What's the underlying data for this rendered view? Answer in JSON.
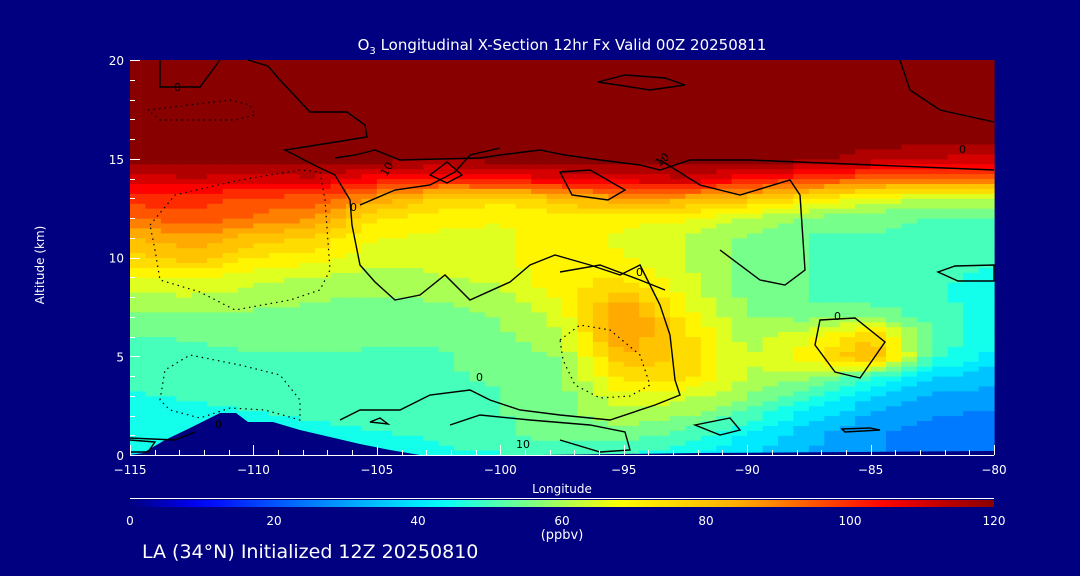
{
  "chart_data": {
    "type": "heatmap",
    "title_prefix": "O",
    "title_sub": "3",
    "title_rest": " Longitudinal X-Section 12hr  Fx Valid 00Z 20250811",
    "xlabel": "Longitude",
    "ylabel": "Altitude (km)",
    "xlim": [
      -115,
      -80
    ],
    "ylim": [
      0,
      20
    ],
    "x_ticks": [
      "−115",
      "−110",
      "−105",
      "−100",
      "−95",
      "−90",
      "−85",
      "−80"
    ],
    "x_tick_values": [
      -115,
      -110,
      -105,
      -100,
      -95,
      -90,
      -85,
      -80
    ],
    "y_ticks": [
      "0",
      "5",
      "10",
      "15",
      "20"
    ],
    "y_tick_values": [
      0,
      5,
      10,
      15,
      20
    ],
    "colorbar": {
      "range": [
        0,
        120
      ],
      "ticks": [
        "0",
        "20",
        "40",
        "60",
        "80",
        "100",
        "120"
      ],
      "units": "(ppbv)"
    },
    "contour_labels": [
      "0",
      "0",
      "10",
      "0",
      "10",
      "0",
      "0",
      "0",
      "0",
      "10"
    ],
    "lon": [
      -115,
      -112.5,
      -110,
      -107.5,
      -105,
      -102.5,
      -100,
      -97.5,
      -95,
      -92.5,
      -90,
      -87.5,
      -85,
      -82.5,
      -80
    ],
    "alt": [
      0,
      1,
      2,
      3,
      4,
      5,
      6,
      7,
      8,
      9,
      10,
      11,
      12,
      13,
      14,
      15,
      16,
      17,
      18,
      19,
      20
    ],
    "values": [
      [
        42,
        42,
        44,
        45,
        45,
        46,
        47,
        48,
        47,
        44,
        38,
        32,
        28,
        26,
        25
      ],
      [
        44,
        45,
        46,
        46,
        47,
        48,
        52,
        55,
        55,
        50,
        42,
        34,
        28,
        25,
        24
      ],
      [
        45,
        46,
        47,
        48,
        49,
        50,
        52,
        56,
        60,
        58,
        50,
        40,
        32,
        28,
        26
      ],
      [
        47,
        48,
        49,
        49,
        50,
        51,
        52,
        56,
        66,
        64,
        58,
        48,
        38,
        32,
        30
      ],
      [
        48,
        49,
        50,
        50,
        51,
        52,
        53,
        56,
        75,
        74,
        62,
        60,
        50,
        38,
        34
      ],
      [
        50,
        51,
        52,
        52,
        52,
        52,
        54,
        58,
        82,
        76,
        62,
        70,
        84,
        50,
        40
      ],
      [
        52,
        53,
        54,
        54,
        53,
        53,
        56,
        62,
        88,
        74,
        60,
        66,
        78,
        52,
        44
      ],
      [
        56,
        57,
        56,
        56,
        55,
        55,
        58,
        64,
        90,
        70,
        58,
        56,
        58,
        50,
        46
      ],
      [
        60,
        62,
        60,
        58,
        57,
        58,
        60,
        68,
        82,
        66,
        56,
        52,
        50,
        48,
        46
      ],
      [
        66,
        68,
        64,
        62,
        60,
        62,
        64,
        72,
        72,
        64,
        56,
        52,
        50,
        48,
        47
      ],
      [
        76,
        80,
        72,
        70,
        64,
        64,
        66,
        72,
        68,
        62,
        56,
        52,
        50,
        48,
        48
      ],
      [
        82,
        86,
        80,
        76,
        68,
        66,
        66,
        70,
        66,
        62,
        56,
        52,
        52,
        50,
        50
      ],
      [
        92,
        96,
        92,
        88,
        72,
        70,
        68,
        70,
        70,
        68,
        62,
        56,
        54,
        52,
        52
      ],
      [
        100,
        100,
        96,
        95,
        86,
        76,
        74,
        80,
        86,
        84,
        80,
        72,
        66,
        62,
        62
      ],
      [
        110,
        112,
        110,
        112,
        104,
        102,
        104,
        108,
        110,
        112,
        104,
        98,
        94,
        92,
        92
      ],
      [
        120,
        120,
        120,
        120,
        120,
        118,
        120,
        120,
        120,
        120,
        120,
        120,
        115,
        112,
        110
      ],
      [
        120,
        120,
        120,
        120,
        120,
        120,
        120,
        120,
        120,
        120,
        120,
        120,
        120,
        120,
        120
      ],
      [
        120,
        120,
        120,
        120,
        120,
        120,
        120,
        120,
        120,
        120,
        120,
        120,
        120,
        120,
        120
      ],
      [
        120,
        120,
        120,
        120,
        120,
        120,
        120,
        120,
        120,
        120,
        120,
        120,
        120,
        120,
        120
      ],
      [
        120,
        120,
        120,
        120,
        120,
        120,
        120,
        120,
        120,
        120,
        120,
        120,
        120,
        120,
        120
      ],
      [
        120,
        120,
        120,
        120,
        120,
        120,
        120,
        120,
        120,
        120,
        120,
        120,
        120,
        120,
        120
      ]
    ]
  },
  "colors": {
    "background": "#000080",
    "terrain": "#000080",
    "colormap": [
      "#000080",
      "#0000ff",
      "#0064ff",
      "#00ffff",
      "#80ff80",
      "#ffff00",
      "#ffaa00",
      "#ff0000",
      "#880000"
    ]
  },
  "footer": "LA (34°N) Initialized 12Z 20250810"
}
